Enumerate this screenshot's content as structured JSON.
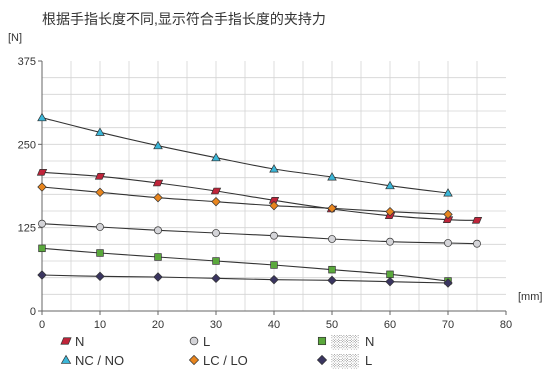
{
  "chart_data": {
    "type": "line",
    "title": "根据手指长度不同,显示符合手指长度的夹持力",
    "ylabel": "[N]",
    "xlabel": "[mm]",
    "xlim": [
      0,
      80
    ],
    "ylim": [
      0,
      375
    ],
    "x_ticks": [
      "0",
      "10",
      "20",
      "30",
      "40",
      "50",
      "60",
      "70",
      "80"
    ],
    "y_ticks": [
      "0",
      "125",
      "250",
      "375"
    ],
    "grid": true,
    "legend_position": "bottom",
    "series": [
      {
        "name": "N",
        "marker": "parallelogram",
        "color": "#c0243a",
        "x": [
          0,
          10,
          20,
          30,
          40,
          50,
          60,
          70,
          75
        ],
        "y": [
          208,
          202,
          192,
          180,
          166,
          153,
          143,
          137,
          136
        ]
      },
      {
        "name": "NC / NO",
        "marker": "triangle",
        "color": "#3ab6d8",
        "x": [
          0,
          10,
          20,
          30,
          40,
          50,
          60,
          70
        ],
        "y": [
          290,
          268,
          248,
          230,
          213,
          201,
          188,
          177
        ]
      },
      {
        "name": "L",
        "marker": "circle",
        "color": "#d4d4d8",
        "x": [
          0,
          10,
          20,
          30,
          40,
          50,
          60,
          70,
          75
        ],
        "y": [
          131,
          126,
          121,
          117,
          113,
          108,
          104,
          102,
          101
        ]
      },
      {
        "name": "LC / LO",
        "marker": "diamond",
        "color": "#e8851e",
        "x": [
          0,
          10,
          20,
          30,
          40,
          50,
          60,
          70
        ],
        "y": [
          186,
          178,
          170,
          164,
          158,
          154,
          149,
          145
        ]
      },
      {
        "name": "N",
        "prefix": "░░░",
        "marker": "square",
        "color": "#5aa83c",
        "x": [
          0,
          10,
          20,
          30,
          40,
          50,
          60,
          70
        ],
        "y": [
          94,
          87,
          81,
          75,
          69,
          62,
          55,
          45
        ]
      },
      {
        "name": "L",
        "prefix": "░░░",
        "marker": "diamond",
        "color": "#3a3560",
        "x": [
          0,
          10,
          20,
          30,
          40,
          50,
          60,
          70
        ],
        "y": [
          54,
          52,
          51,
          49,
          47,
          46,
          44,
          42
        ]
      }
    ]
  }
}
